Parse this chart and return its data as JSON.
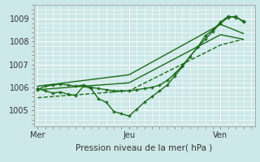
{
  "background_color": "#cce8e8",
  "grid_color": "#ffffff",
  "line_color": "#1a6b1a",
  "marker_color": "#1a6b1a",
  "xlabel": "Pression niveau de la mer( hPa )",
  "yticks": [
    1005,
    1006,
    1007,
    1008,
    1009
  ],
  "ylim": [
    1004.3,
    1009.6
  ],
  "xtick_labels": [
    "Mer",
    "Jeu",
    "Ven"
  ],
  "xtick_positions": [
    0,
    48,
    96
  ],
  "xlim": [
    -2,
    114
  ],
  "series": [
    {
      "x": [
        0,
        4,
        8,
        12,
        16,
        20,
        24,
        28,
        32,
        36,
        40,
        44,
        48,
        52,
        56,
        60,
        64,
        68,
        72,
        76,
        80,
        84,
        88,
        92,
        96,
        100,
        104,
        108
      ],
      "y": [
        1005.95,
        1005.85,
        1005.75,
        1005.8,
        1005.7,
        1005.65,
        1006.05,
        1005.95,
        1005.5,
        1005.35,
        1004.95,
        1004.85,
        1004.75,
        1005.05,
        1005.35,
        1005.6,
        1005.85,
        1006.1,
        1006.5,
        1006.9,
        1007.35,
        1007.75,
        1008.25,
        1008.5,
        1008.85,
        1009.1,
        1009.05,
        1008.9
      ],
      "linewidth": 1.0,
      "marker": "+",
      "markersize": 3.5,
      "linestyle": "-"
    },
    {
      "x": [
        0,
        4,
        8,
        12,
        16,
        20,
        24,
        28,
        32,
        36,
        40,
        44,
        48,
        52,
        56,
        60,
        64,
        68,
        72,
        76,
        80,
        84,
        88,
        92,
        96,
        100,
        104,
        108
      ],
      "y": [
        1005.9,
        1006.05,
        1006.1,
        1006.15,
        1006.1,
        1006.05,
        1006.1,
        1006.0,
        1005.95,
        1005.9,
        1005.85,
        1005.85,
        1005.85,
        1005.9,
        1005.95,
        1006.0,
        1006.1,
        1006.3,
        1006.6,
        1006.95,
        1007.35,
        1007.75,
        1008.1,
        1008.45,
        1008.8,
        1009.05,
        1009.1,
        1008.85
      ],
      "linewidth": 1.0,
      "marker": "+",
      "markersize": 3.5,
      "linestyle": "-"
    },
    {
      "x": [
        0,
        48,
        96,
        108
      ],
      "y": [
        1006.05,
        1006.55,
        1008.75,
        1008.35
      ],
      "linewidth": 1.0,
      "marker": null,
      "markersize": 0,
      "linestyle": "-"
    },
    {
      "x": [
        0,
        48,
        96,
        108
      ],
      "y": [
        1005.9,
        1006.2,
        1008.3,
        1008.1
      ],
      "linewidth": 1.0,
      "marker": null,
      "markersize": 0,
      "linestyle": "-"
    },
    {
      "x": [
        0,
        48,
        96,
        108
      ],
      "y": [
        1005.55,
        1005.85,
        1007.85,
        1008.1
      ],
      "linewidth": 1.0,
      "marker": null,
      "markersize": 0,
      "linestyle": "--"
    }
  ]
}
